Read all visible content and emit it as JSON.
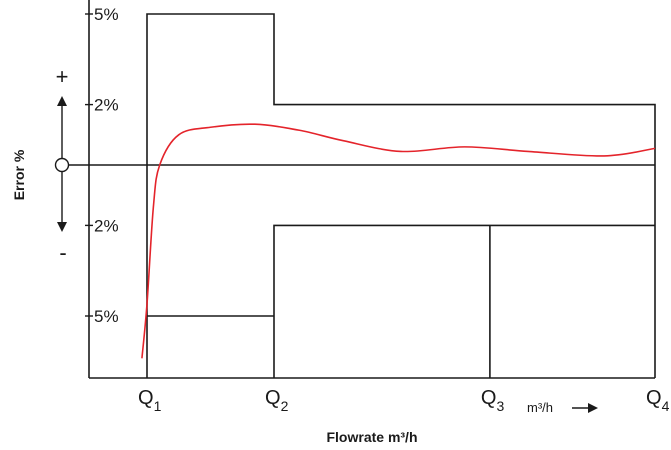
{
  "chart_data": {
    "type": "line",
    "ylabel": "Error %",
    "xlabel": "Flowrate m³/h",
    "x_unit_label": "m³/h",
    "sign_plus": "+",
    "sign_minus": "-",
    "y_tick_labels": [
      "5%",
      "2%",
      "2%",
      "5%"
    ],
    "y_ticks": [
      5,
      2,
      -2,
      -5
    ],
    "ylim": [
      -7.3,
      5.5
    ],
    "x_ticks": [
      {
        "base": "Q",
        "sub": "1"
      },
      {
        "base": "Q",
        "sub": "2"
      },
      {
        "base": "Q",
        "sub": "3"
      },
      {
        "base": "Q",
        "sub": "4"
      }
    ],
    "x_positions": [
      1,
      2,
      3.7,
      5
    ],
    "xlim": [
      0.5,
      5.2
    ],
    "limits": {
      "upper": [
        {
          "from": 1,
          "to": 2,
          "value": 5
        },
        {
          "from": 2,
          "to": 5,
          "value": 2
        }
      ],
      "lower": [
        {
          "from": 1,
          "to": 2,
          "value": -5
        },
        {
          "from": 2,
          "to": 5,
          "value": -2
        }
      ]
    },
    "error_curve": [
      {
        "x": 0.96,
        "y": -6.4
      },
      {
        "x": 1.0,
        "y": -4.6
      },
      {
        "x": 1.05,
        "y": -1.4
      },
      {
        "x": 1.1,
        "y": 0.0
      },
      {
        "x": 1.25,
        "y": 1.0
      },
      {
        "x": 1.5,
        "y": 1.25
      },
      {
        "x": 1.85,
        "y": 1.35
      },
      {
        "x": 2.2,
        "y": 1.15
      },
      {
        "x": 2.55,
        "y": 0.8
      },
      {
        "x": 3.0,
        "y": 0.45
      },
      {
        "x": 3.5,
        "y": 0.6
      },
      {
        "x": 4.0,
        "y": 0.45
      },
      {
        "x": 4.6,
        "y": 0.3
      },
      {
        "x": 5.0,
        "y": 0.55
      }
    ],
    "colors": {
      "curve": "#e4242b",
      "lines": "#1a1a1a"
    },
    "grid": false,
    "legend": "none"
  }
}
